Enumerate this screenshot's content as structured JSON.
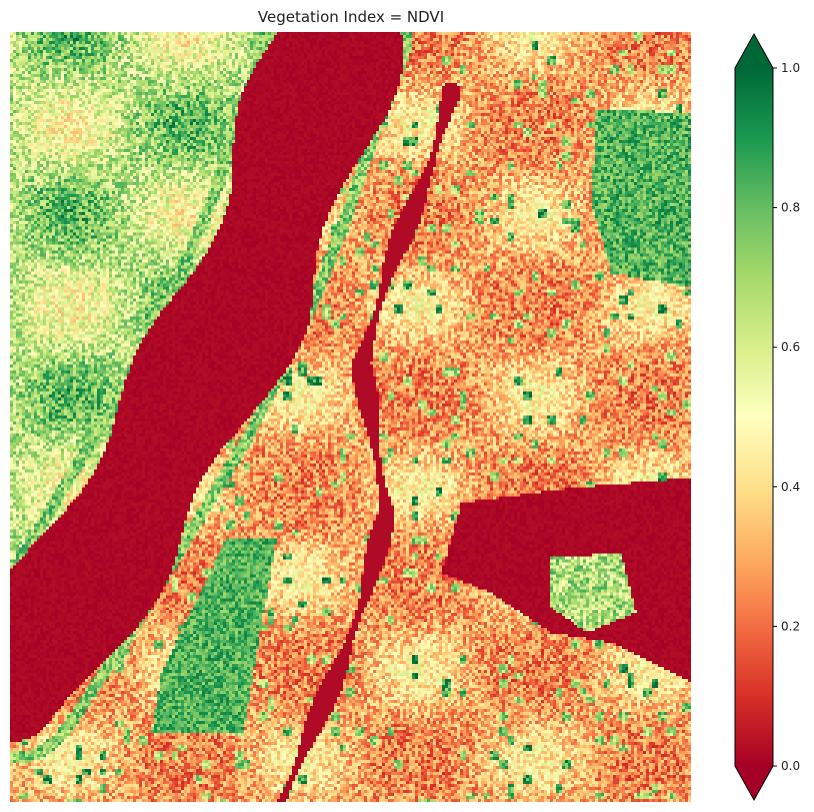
{
  "chart_data": {
    "type": "heatmap",
    "title": "Vegetation Index = NDVI",
    "xlabel": "",
    "ylabel": "",
    "colormap": "RdYlGn",
    "vmin": 0.0,
    "vmax": 1.0,
    "colorbar": {
      "extend": "both",
      "ticks": [
        0.0,
        0.2,
        0.4,
        0.6,
        0.8,
        1.0
      ],
      "tick_labels": [
        "0.0",
        "0.2",
        "0.4",
        "0.6",
        "0.8",
        "1.0"
      ]
    },
    "colormap_stops": [
      {
        "value": 0.0,
        "color": "#a50026"
      },
      {
        "value": 0.1,
        "color": "#d73027"
      },
      {
        "value": 0.2,
        "color": "#f46d43"
      },
      {
        "value": 0.3,
        "color": "#fdae61"
      },
      {
        "value": 0.4,
        "color": "#fee08b"
      },
      {
        "value": 0.5,
        "color": "#ffffbf"
      },
      {
        "value": 0.6,
        "color": "#d9ef8b"
      },
      {
        "value": 0.7,
        "color": "#a6d96a"
      },
      {
        "value": 0.8,
        "color": "#66bd63"
      },
      {
        "value": 0.9,
        "color": "#1a9850"
      },
      {
        "value": 1.0,
        "color": "#006837"
      }
    ],
    "grid": false,
    "axes_visible": false
  }
}
